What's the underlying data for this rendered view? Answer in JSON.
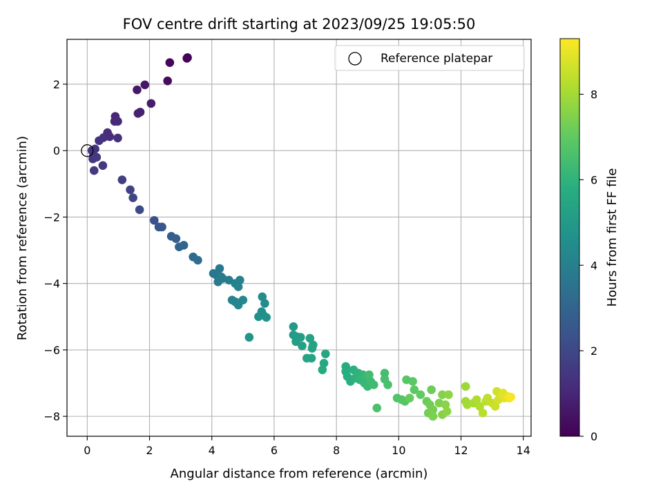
{
  "chart_data": {
    "type": "scatter",
    "title": "FOV centre drift starting at 2023/09/25 19:05:50",
    "xlabel": "Angular distance from reference (arcmin)",
    "ylabel": "Rotation from reference (arcmin)",
    "xlim": [
      -0.65,
      14.25
    ],
    "ylim": [
      -8.6,
      3.35
    ],
    "xticks": [
      0,
      2,
      4,
      6,
      8,
      10,
      12,
      14
    ],
    "yticks": [
      -8,
      -6,
      -4,
      -2,
      0,
      2
    ],
    "grid": true,
    "legend": {
      "location": "upper right",
      "entries": [
        "Reference platepar"
      ]
    },
    "reference_point": {
      "x": 0,
      "y": 0,
      "label": "Reference platepar"
    },
    "colorbar": {
      "label": "Hours from first FF file",
      "colormap": "viridis",
      "range": [
        0,
        9.3
      ],
      "ticks": [
        0,
        2,
        4,
        6,
        8
      ]
    },
    "points": [
      [
        3.2,
        2.78,
        0.0
      ],
      [
        3.22,
        2.8,
        0.05
      ],
      [
        2.65,
        2.65,
        0.15
      ],
      [
        2.58,
        2.1,
        0.3
      ],
      [
        1.85,
        1.98,
        0.55
      ],
      [
        1.6,
        1.83,
        0.6
      ],
      [
        2.05,
        1.42,
        0.75
      ],
      [
        1.7,
        1.16,
        0.85
      ],
      [
        1.63,
        1.12,
        0.9
      ],
      [
        0.9,
        1.03,
        1.0
      ],
      [
        0.88,
        0.88,
        1.05
      ],
      [
        0.98,
        0.88,
        1.1
      ],
      [
        0.65,
        0.54,
        1.15
      ],
      [
        0.72,
        0.42,
        1.2
      ],
      [
        0.98,
        0.38,
        1.25
      ],
      [
        0.52,
        0.39,
        1.3
      ],
      [
        0.38,
        0.3,
        1.35
      ],
      [
        0.15,
        0.0,
        1.4
      ],
      [
        0.25,
        0.05,
        1.42
      ],
      [
        0.2,
        -0.15,
        1.45
      ],
      [
        0.18,
        -0.25,
        1.48
      ],
      [
        0.3,
        -0.2,
        1.5
      ],
      [
        0.5,
        -0.45,
        1.55
      ],
      [
        0.22,
        -0.6,
        1.6
      ],
      [
        1.12,
        -0.88,
        1.7
      ],
      [
        1.38,
        -1.18,
        1.85
      ],
      [
        1.47,
        -1.42,
        1.95
      ],
      [
        1.68,
        -1.78,
        2.05
      ],
      [
        2.15,
        -2.1,
        2.3
      ],
      [
        2.3,
        -2.3,
        2.45
      ],
      [
        2.4,
        -2.3,
        2.5
      ],
      [
        2.7,
        -2.58,
        2.7
      ],
      [
        2.85,
        -2.65,
        2.8
      ],
      [
        2.95,
        -2.9,
        2.95
      ],
      [
        3.1,
        -2.85,
        3.0
      ],
      [
        3.4,
        -3.2,
        3.2
      ],
      [
        3.55,
        -3.3,
        3.3
      ],
      [
        4.05,
        -3.7,
        3.6
      ],
      [
        4.15,
        -3.75,
        3.65
      ],
      [
        4.25,
        -3.55,
        3.7
      ],
      [
        4.2,
        -3.95,
        3.75
      ],
      [
        4.35,
        -3.85,
        3.8
      ],
      [
        4.55,
        -3.9,
        3.85
      ],
      [
        4.3,
        -3.8,
        3.9
      ],
      [
        4.75,
        -4.0,
        4.0
      ],
      [
        4.9,
        -3.9,
        4.05
      ],
      [
        4.85,
        -4.1,
        4.1
      ],
      [
        4.65,
        -4.5,
        4.15
      ],
      [
        4.75,
        -4.55,
        4.2
      ],
      [
        4.85,
        -4.65,
        4.25
      ],
      [
        5.0,
        -4.5,
        4.3
      ],
      [
        5.62,
        -4.4,
        4.45
      ],
      [
        5.7,
        -4.6,
        4.5
      ],
      [
        5.6,
        -4.85,
        4.55
      ],
      [
        5.65,
        -4.95,
        4.6
      ],
      [
        5.5,
        -5.0,
        4.65
      ],
      [
        5.75,
        -5.02,
        4.7
      ],
      [
        5.2,
        -5.62,
        4.8
      ],
      [
        6.62,
        -5.3,
        5.0
      ],
      [
        6.62,
        -5.55,
        5.05
      ],
      [
        6.72,
        -5.6,
        5.1
      ],
      [
        6.85,
        -5.62,
        5.15
      ],
      [
        6.7,
        -5.75,
        5.2
      ],
      [
        6.9,
        -5.88,
        5.25
      ],
      [
        7.15,
        -5.65,
        5.3
      ],
      [
        7.25,
        -5.85,
        5.35
      ],
      [
        7.22,
        -5.95,
        5.38
      ],
      [
        7.05,
        -6.25,
        5.4
      ],
      [
        7.2,
        -6.25,
        5.45
      ],
      [
        7.65,
        -6.12,
        5.5
      ],
      [
        7.6,
        -6.4,
        5.55
      ],
      [
        7.55,
        -6.6,
        5.6
      ],
      [
        8.3,
        -6.5,
        5.7
      ],
      [
        8.3,
        -6.65,
        5.75
      ],
      [
        8.35,
        -6.8,
        5.8
      ],
      [
        8.45,
        -6.95,
        5.85
      ],
      [
        8.55,
        -6.6,
        5.9
      ],
      [
        8.6,
        -6.85,
        5.95
      ],
      [
        8.7,
        -6.7,
        6.0
      ],
      [
        8.75,
        -6.9,
        6.05
      ],
      [
        8.85,
        -6.75,
        6.1
      ],
      [
        8.9,
        -7.0,
        6.15
      ],
      [
        8.95,
        -6.8,
        6.2
      ],
      [
        9.0,
        -7.1,
        6.25
      ],
      [
        9.1,
        -6.95,
        6.3
      ],
      [
        9.2,
        -7.05,
        6.35
      ],
      [
        9.05,
        -6.75,
        6.4
      ],
      [
        9.55,
        -6.7,
        6.45
      ],
      [
        9.55,
        -6.88,
        6.5
      ],
      [
        9.65,
        -7.05,
        6.55
      ],
      [
        9.3,
        -7.75,
        6.6
      ],
      [
        9.95,
        -7.45,
        6.7
      ],
      [
        10.1,
        -7.5,
        6.75
      ],
      [
        10.2,
        -7.55,
        6.8
      ],
      [
        10.25,
        -6.9,
        6.85
      ],
      [
        10.45,
        -6.95,
        6.9
      ],
      [
        10.5,
        -7.2,
        6.95
      ],
      [
        10.7,
        -7.35,
        7.0
      ],
      [
        10.35,
        -7.45,
        7.1
      ],
      [
        10.9,
        -7.55,
        7.15
      ],
      [
        11.05,
        -7.2,
        7.2
      ],
      [
        11.0,
        -7.65,
        7.25
      ],
      [
        10.95,
        -7.9,
        7.3
      ],
      [
        11.1,
        -7.8,
        7.35
      ],
      [
        11.1,
        -8.0,
        7.4
      ],
      [
        11.3,
        -7.6,
        7.45
      ],
      [
        11.4,
        -7.35,
        7.5
      ],
      [
        11.4,
        -7.95,
        7.55
      ],
      [
        11.5,
        -7.65,
        7.6
      ],
      [
        11.55,
        -7.85,
        7.65
      ],
      [
        11.6,
        -7.35,
        7.7
      ],
      [
        12.15,
        -7.1,
        7.9
      ],
      [
        12.15,
        -7.55,
        7.95
      ],
      [
        12.2,
        -7.65,
        8.0
      ],
      [
        12.4,
        -7.6,
        8.1
      ],
      [
        12.5,
        -7.5,
        8.15
      ],
      [
        12.6,
        -7.7,
        8.2
      ],
      [
        12.7,
        -7.9,
        8.3
      ],
      [
        12.8,
        -7.55,
        8.35
      ],
      [
        12.85,
        -7.45,
        8.4
      ],
      [
        13.0,
        -7.6,
        8.5
      ],
      [
        13.1,
        -7.7,
        8.55
      ],
      [
        13.15,
        -7.25,
        8.6
      ],
      [
        13.2,
        -7.5,
        8.7
      ],
      [
        13.3,
        -7.35,
        8.8
      ],
      [
        13.35,
        -7.3,
        8.85
      ],
      [
        13.4,
        -7.45,
        8.9
      ],
      [
        13.5,
        -7.4,
        9.0
      ],
      [
        13.55,
        -7.45,
        9.1
      ],
      [
        13.6,
        -7.42,
        9.2
      ]
    ]
  }
}
